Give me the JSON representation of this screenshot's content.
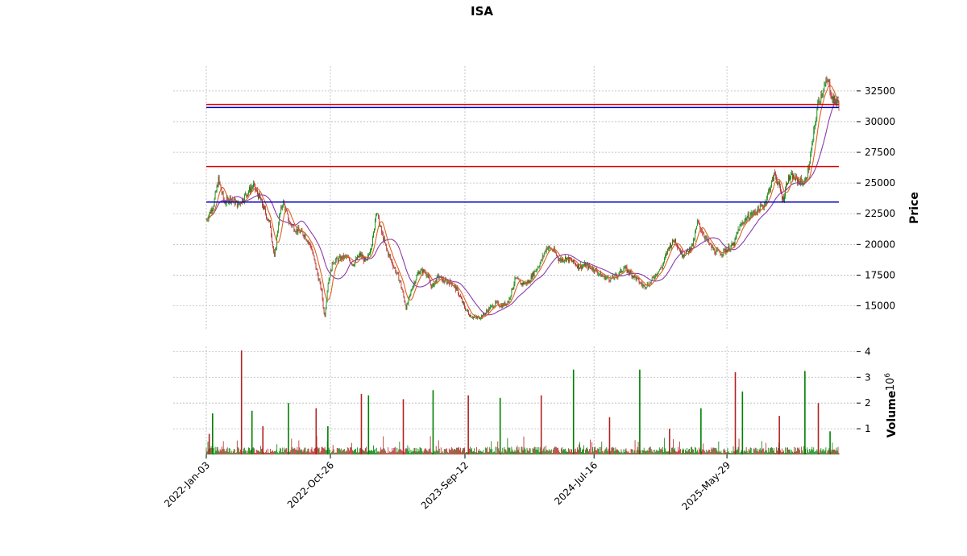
{
  "chart_data": [
    {
      "type": "candlestick",
      "panel": "price",
      "title": "ISA",
      "ylabel": "Price",
      "ylim": [
        13000,
        34000
      ],
      "yticks": [
        15000,
        17500,
        20000,
        22500,
        25000,
        27500,
        30000,
        32500
      ],
      "x_date_range": [
        "2022-01-03",
        "2026-02-20"
      ],
      "xticks": [
        "2022-Jan-03",
        "2022-Oct-26",
        "2023-Sep-12",
        "2024-Jul-16",
        "2025-May-29"
      ],
      "grid": true,
      "colors": {
        "up": "#008000",
        "down": "#b22222",
        "ma_fast": "#e06020",
        "ma_slow": "#8a3ca8",
        "hline_red": "#e00000",
        "hline_blue": "#0000c0"
      },
      "horizontal_lines": [
        {
          "value": 31400,
          "color": "#e00000"
        },
        {
          "value": 31150,
          "color": "#0000c0"
        },
        {
          "value": 26350,
          "color": "#e00000"
        },
        {
          "value": 23450,
          "color": "#0000c0"
        }
      ],
      "close_path": [
        [
          "2022-01-03",
          22000
        ],
        [
          "2022-01-20",
          23200
        ],
        [
          "2022-02-01",
          25300
        ],
        [
          "2022-02-15",
          23400
        ],
        [
          "2022-03-01",
          23800
        ],
        [
          "2022-03-20",
          23200
        ],
        [
          "2022-04-10",
          24200
        ],
        [
          "2022-04-25",
          24800
        ],
        [
          "2022-05-10",
          23800
        ],
        [
          "2022-05-25",
          22500
        ],
        [
          "2022-06-05",
          21500
        ],
        [
          "2022-06-15",
          18800
        ],
        [
          "2022-06-25",
          22000
        ],
        [
          "2022-07-05",
          23500
        ],
        [
          "2022-07-20",
          21800
        ],
        [
          "2022-08-05",
          21200
        ],
        [
          "2022-08-25",
          20800
        ],
        [
          "2022-09-10",
          19800
        ],
        [
          "2022-09-25",
          17600
        ],
        [
          "2022-10-05",
          16200
        ],
        [
          "2022-10-12",
          14000
        ],
        [
          "2022-10-20",
          16800
        ],
        [
          "2022-11-01",
          18600
        ],
        [
          "2022-11-15",
          18800
        ],
        [
          "2022-12-01",
          19000
        ],
        [
          "2022-12-20",
          18400
        ],
        [
          "2023-01-05",
          19200
        ],
        [
          "2023-01-20",
          18500
        ],
        [
          "2023-02-05",
          20500
        ],
        [
          "2023-02-12",
          22800
        ],
        [
          "2023-02-25",
          21000
        ],
        [
          "2023-03-10",
          19500
        ],
        [
          "2023-03-25",
          18300
        ],
        [
          "2023-04-10",
          17000
        ],
        [
          "2023-04-25",
          14800
        ],
        [
          "2023-05-10",
          16600
        ],
        [
          "2023-05-25",
          17800
        ],
        [
          "2023-06-10",
          17800
        ],
        [
          "2023-06-25",
          16500
        ],
        [
          "2023-07-10",
          17400
        ],
        [
          "2023-07-25",
          17000
        ],
        [
          "2023-08-10",
          16900
        ],
        [
          "2023-08-25",
          16200
        ],
        [
          "2023-09-12",
          14800
        ],
        [
          "2023-09-25",
          14200
        ],
        [
          "2023-10-10",
          14000
        ],
        [
          "2023-10-25",
          14200
        ],
        [
          "2023-11-10",
          14800
        ],
        [
          "2023-11-25",
          15200
        ],
        [
          "2023-12-10",
          15000
        ],
        [
          "2023-12-25",
          15400
        ],
        [
          "2024-01-10",
          17200
        ],
        [
          "2024-01-25",
          16800
        ],
        [
          "2024-02-10",
          16900
        ],
        [
          "2024-02-25",
          17800
        ],
        [
          "2024-03-10",
          18500
        ],
        [
          "2024-03-25",
          19800
        ],
        [
          "2024-04-10",
          19500
        ],
        [
          "2024-04-25",
          18700
        ],
        [
          "2024-05-10",
          18900
        ],
        [
          "2024-05-25",
          18600
        ],
        [
          "2024-06-10",
          18200
        ],
        [
          "2024-06-25",
          18300
        ],
        [
          "2024-07-16",
          18000
        ],
        [
          "2024-08-05",
          17400
        ],
        [
          "2024-08-25",
          17200
        ],
        [
          "2024-09-10",
          17500
        ],
        [
          "2024-09-25",
          18100
        ],
        [
          "2024-10-10",
          17700
        ],
        [
          "2024-10-25",
          17200
        ],
        [
          "2024-11-10",
          16600
        ],
        [
          "2024-11-25",
          16800
        ],
        [
          "2024-12-10",
          17600
        ],
        [
          "2024-12-25",
          18200
        ],
        [
          "2025-01-10",
          19800
        ],
        [
          "2025-01-25",
          20400
        ],
        [
          "2025-02-10",
          19200
        ],
        [
          "2025-02-25",
          19400
        ],
        [
          "2025-03-10",
          20100
        ],
        [
          "2025-03-20",
          21800
        ],
        [
          "2025-04-01",
          21000
        ],
        [
          "2025-04-15",
          20100
        ],
        [
          "2025-04-30",
          19400
        ],
        [
          "2025-05-15",
          19300
        ],
        [
          "2025-05-29",
          19600
        ],
        [
          "2025-06-15",
          20000
        ],
        [
          "2025-06-25",
          21200
        ],
        [
          "2025-07-10",
          22000
        ],
        [
          "2025-07-25",
          22400
        ],
        [
          "2025-08-10",
          22800
        ],
        [
          "2025-08-25",
          23200
        ],
        [
          "2025-09-10",
          24800
        ],
        [
          "2025-09-20",
          25800
        ],
        [
          "2025-10-01",
          24600
        ],
        [
          "2025-10-10",
          23600
        ],
        [
          "2025-10-20",
          25300
        ],
        [
          "2025-11-01",
          25500
        ],
        [
          "2025-11-15",
          25200
        ],
        [
          "2025-12-01",
          25000
        ],
        [
          "2025-12-10",
          26200
        ],
        [
          "2025-12-20",
          28500
        ],
        [
          "2026-01-01",
          31500
        ],
        [
          "2026-01-15",
          32800
        ],
        [
          "2026-01-25",
          33300
        ],
        [
          "2026-02-05",
          31800
        ],
        [
          "2026-02-20",
          31500
        ]
      ]
    },
    {
      "type": "bar",
      "panel": "volume",
      "ylabel": "Volume",
      "scale_label": "10^6",
      "scale_exponent": "6",
      "ylim": [
        0,
        4.2
      ],
      "yticks": [
        1,
        2,
        3,
        4
      ],
      "volume_spikes": [
        [
          "2022-01-10",
          0.8
        ],
        [
          "2022-01-18",
          1.6
        ],
        [
          "2022-03-28",
          4.05
        ],
        [
          "2022-04-22",
          1.7
        ],
        [
          "2022-05-18",
          1.1
        ],
        [
          "2022-07-18",
          2.0
        ],
        [
          "2022-09-22",
          1.8
        ],
        [
          "2022-10-20",
          1.1
        ],
        [
          "2023-01-08",
          2.35
        ],
        [
          "2023-01-25",
          2.3
        ],
        [
          "2023-04-18",
          2.15
        ],
        [
          "2023-06-28",
          2.5
        ],
        [
          "2023-09-20",
          2.3
        ],
        [
          "2023-12-05",
          2.2
        ],
        [
          "2024-03-12",
          2.3
        ],
        [
          "2024-05-28",
          3.3
        ],
        [
          "2024-08-22",
          1.45
        ],
        [
          "2024-11-02",
          3.3
        ],
        [
          "2025-01-12",
          1.0
        ],
        [
          "2025-03-28",
          1.8
        ],
        [
          "2025-06-18",
          3.2
        ],
        [
          "2025-07-05",
          2.45
        ],
        [
          "2025-10-01",
          1.5
        ],
        [
          "2025-12-01",
          3.25
        ],
        [
          "2026-01-02",
          2.0
        ],
        [
          "2026-01-30",
          0.9
        ]
      ]
    }
  ]
}
